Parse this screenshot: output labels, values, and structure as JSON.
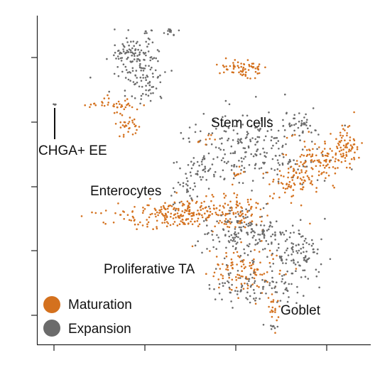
{
  "chart_data": {
    "type": "scatter",
    "title": "",
    "xlabel": "",
    "ylabel": "",
    "grid": false,
    "legend_placement": "bottom-left",
    "series": [
      {
        "name": "Maturation",
        "color": "#d4711e"
      },
      {
        "name": "Expansion",
        "color": "#6b6b6b"
      }
    ],
    "cluster_labels": [
      {
        "text": "CHGA+ EE"
      },
      {
        "text": "Stem cells"
      },
      {
        "text": "Enterocytes"
      },
      {
        "text": "Proliferative TA"
      },
      {
        "text": "Goblet"
      }
    ]
  }
}
